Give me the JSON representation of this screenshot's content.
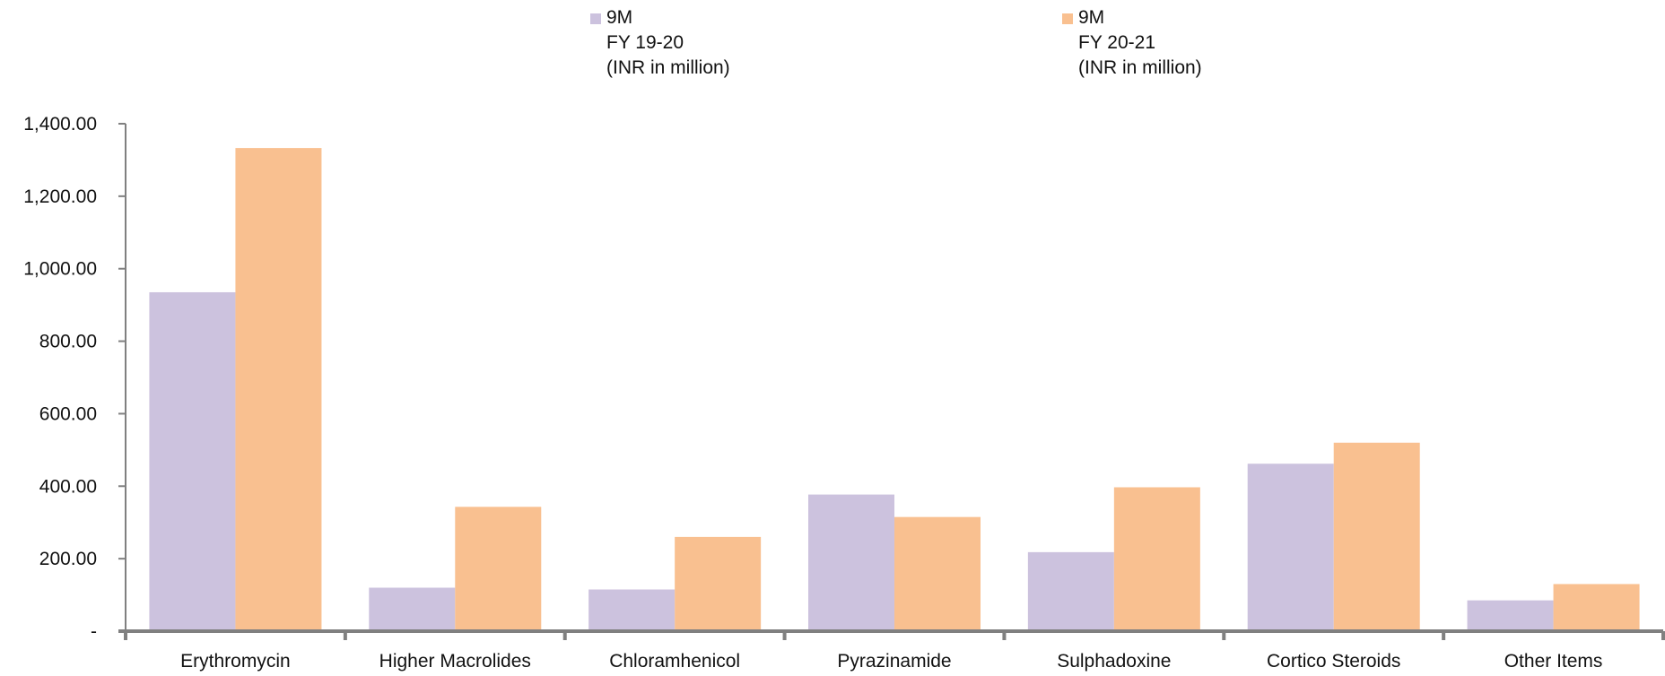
{
  "chart_data": {
    "type": "bar",
    "categories": [
      "Erythromycin",
      "Higher Macrolides",
      "Chloramhenicol",
      "Pyrazinamide",
      "Sulphadoxine",
      "Cortico Steroids",
      "Other Items"
    ],
    "series": [
      {
        "name": "9M\nFY 19-20\n(INR in million)",
        "color": "#ccc2de",
        "values": [
          935,
          120,
          115,
          377,
          218,
          462,
          85
        ]
      },
      {
        "name": "9M\nFY 20-21\n(INR in million)",
        "color": "#f9c090",
        "values": [
          1333,
          343,
          260,
          315,
          397,
          520,
          130
        ]
      }
    ],
    "ylim": [
      0,
      1400
    ],
    "yticks": [
      0,
      200,
      400,
      600,
      800,
      1000,
      1200,
      1400
    ],
    "ytick_labels": [
      "-",
      "200.00",
      "400.00",
      "600.00",
      "800.00",
      "1,000.00",
      "1,200.00",
      "1,400.00"
    ],
    "xlabel": "",
    "ylabel": "",
    "title": "",
    "grid": false,
    "legend_position": "top-center"
  }
}
